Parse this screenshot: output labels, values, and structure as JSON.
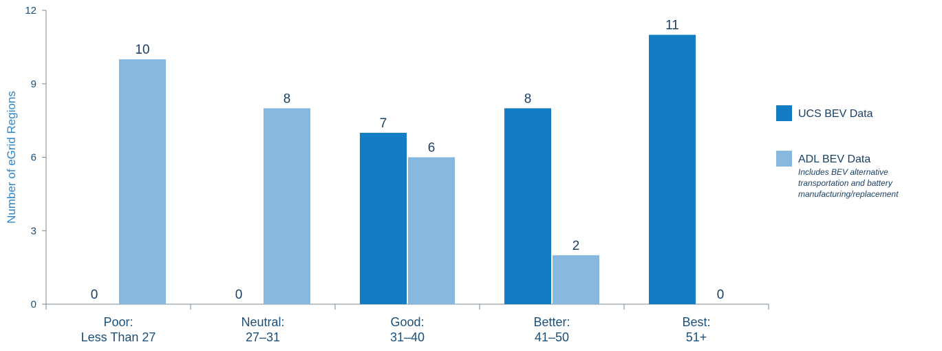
{
  "chart_data": {
    "type": "bar",
    "ylabel": "Number of eGrid Regions",
    "ylim": [
      0,
      12
    ],
    "yticks": [
      0,
      3,
      6,
      9,
      12
    ],
    "categories": [
      [
        "Poor:",
        "Less Than 27"
      ],
      [
        "Neutral:",
        "27–31"
      ],
      [
        "Good:",
        "31–40"
      ],
      [
        "Better:",
        "41–50"
      ],
      [
        "Best:",
        "51+"
      ]
    ],
    "series": [
      {
        "name": "UCS BEV Data",
        "color": "#127dc2",
        "values": [
          0,
          0,
          7,
          8,
          11
        ]
      },
      {
        "name": "ADL BEV Data",
        "note": [
          "Includes BEV alternative",
          "transportation and battery",
          "manufacturing/replacement"
        ],
        "color": "#87b9e0",
        "values": [
          10,
          8,
          6,
          2,
          0
        ]
      }
    ],
    "legend": "right",
    "grid": false
  }
}
